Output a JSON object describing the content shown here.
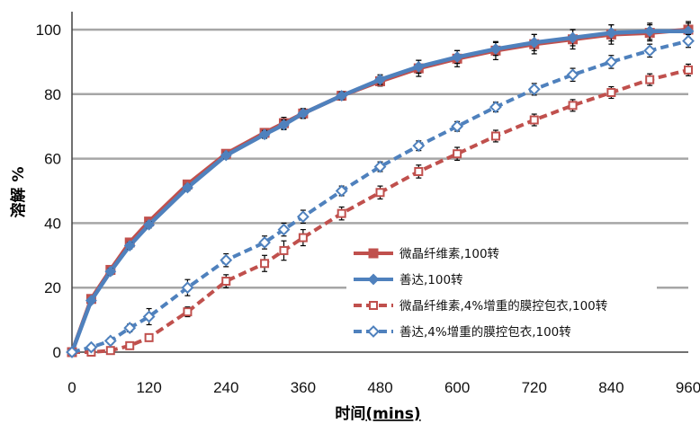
{
  "chart_data": {
    "type": "line",
    "xlabel_main": "时间",
    "xlabel_unit": "(mins)",
    "ylabel": "溶解 %",
    "xlim": [
      0,
      960
    ],
    "ylim": [
      0,
      100
    ],
    "x_ticks": [
      0,
      120,
      240,
      360,
      480,
      600,
      720,
      840,
      960
    ],
    "y_ticks": [
      0,
      20,
      40,
      60,
      80,
      100
    ],
    "grid": "horizontal",
    "legend_position": "bottom-right",
    "series": [
      {
        "name": "微晶纤维素,100转",
        "color": "#c0504d",
        "dash": "solid",
        "marker": "square-filled",
        "x": [
          0,
          30,
          60,
          90,
          120,
          180,
          240,
          300,
          330,
          360,
          420,
          480,
          540,
          600,
          660,
          720,
          780,
          840,
          900,
          960
        ],
        "y": [
          0,
          16.5,
          25.5,
          34,
          40.5,
          52,
          61.5,
          68,
          71,
          74,
          79.5,
          84,
          88,
          91,
          93.5,
          95.5,
          97,
          98.5,
          99,
          100
        ],
        "err": [
          0.5,
          0.8,
          1.0,
          1.0,
          1.0,
          1.0,
          1.0,
          1.2,
          1.8,
          1.5,
          1.2,
          1.5,
          2.5,
          2.5,
          2.8,
          3.0,
          3.0,
          3.0,
          2.5,
          2.5
        ]
      },
      {
        "name": "善达,100转",
        "color": "#4f81bd",
        "dash": "solid",
        "marker": "diamond-filled",
        "x": [
          0,
          30,
          60,
          90,
          120,
          180,
          240,
          300,
          330,
          360,
          420,
          480,
          540,
          600,
          660,
          720,
          780,
          840,
          900,
          960
        ],
        "y": [
          0,
          16,
          25,
          33,
          39.5,
          51,
          61,
          67.5,
          70.5,
          74,
          79.5,
          84.5,
          88.5,
          91.5,
          94,
          96,
          97.5,
          99,
          99.5,
          99.5
        ],
        "err": [
          0.5,
          0.8,
          1.0,
          1.0,
          1.0,
          1.0,
          1.0,
          1.2,
          1.5,
          1.5,
          1.2,
          1.5,
          2.0,
          2.0,
          2.0,
          2.5,
          2.5,
          2.5,
          2.5,
          2.5
        ]
      },
      {
        "name": "微晶纤维素,4%增重的膜控包衣,100转",
        "color": "#c0504d",
        "dash": "dashed",
        "marker": "square-open",
        "x": [
          0,
          30,
          60,
          90,
          120,
          180,
          240,
          300,
          330,
          360,
          420,
          480,
          540,
          600,
          660,
          720,
          780,
          840,
          900,
          960
        ],
        "y": [
          0,
          0,
          0.5,
          2,
          4.5,
          12.5,
          22,
          27.5,
          31.5,
          35.5,
          43,
          49.5,
          56,
          61.5,
          67,
          72,
          76.5,
          80.5,
          84.5,
          87.5
        ],
        "err": [
          0.5,
          0.5,
          0.8,
          1.0,
          1.0,
          1.5,
          2.0,
          2.5,
          3.0,
          2.5,
          2.0,
          2.0,
          2.0,
          2.0,
          1.8,
          1.8,
          1.8,
          1.8,
          1.8,
          1.8
        ]
      },
      {
        "name": "善达,4%增重的膜控包衣,100转",
        "color": "#4f81bd",
        "dash": "dashed",
        "marker": "diamond-open",
        "x": [
          0,
          30,
          60,
          90,
          120,
          180,
          240,
          300,
          330,
          360,
          420,
          480,
          540,
          600,
          660,
          720,
          780,
          840,
          900,
          960
        ],
        "y": [
          0,
          1.5,
          3.5,
          7.5,
          11,
          20,
          28.5,
          34,
          38,
          42,
          50,
          57.5,
          64,
          70,
          76,
          81.5,
          86,
          90,
          93.5,
          96.5
        ],
        "err": [
          0.5,
          0.8,
          1.0,
          1.2,
          2.5,
          2.5,
          2.0,
          2.0,
          2.0,
          2.0,
          1.5,
          1.5,
          1.5,
          1.5,
          1.5,
          1.8,
          2.0,
          2.0,
          2.0,
          2.0
        ]
      }
    ]
  }
}
